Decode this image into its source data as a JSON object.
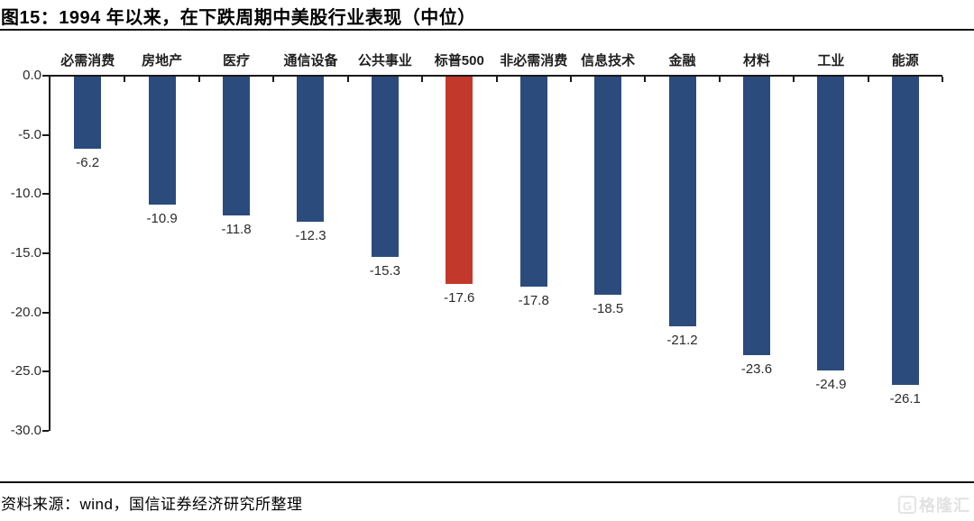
{
  "header": {
    "title": "图15：1994 年以来，在下跌周期中美股行业表现（中位）"
  },
  "footer": {
    "source": "资料来源：wind，国信证券经济研究所整理",
    "logo_icon": "G",
    "logo_text": "格隆汇"
  },
  "chart_data": {
    "type": "bar",
    "title": "图15：1994 年以来，在下跌周期中美股行业表现（中位）",
    "categories": [
      "必需消费",
      "房地产",
      "医疗",
      "通信设备",
      "公共事业",
      "标普500",
      "非必需消费",
      "信息技术",
      "金融",
      "材料",
      "工业",
      "能源"
    ],
    "values": [
      -6.2,
      -10.9,
      -11.8,
      -12.3,
      -15.3,
      -17.6,
      -17.8,
      -18.5,
      -21.2,
      -23.6,
      -24.9,
      -26.1
    ],
    "value_labels": [
      "-6.2",
      "-10.9",
      "-11.8",
      "-12.3",
      "-15.3",
      "-17.6",
      "-17.8",
      "-18.5",
      "-21.2",
      "-23.6",
      "-24.9",
      "-26.1"
    ],
    "highlight_index": 5,
    "highlight_category": "标普500",
    "bar_color": "#2B4B7D",
    "highlight_color": "#C2392B",
    "ylim": [
      -30,
      0
    ],
    "ytick_values": [
      0,
      -5,
      -10,
      -15,
      -20,
      -25,
      -30
    ],
    "ytick_labels": [
      "0.0",
      "-5.0",
      "-10.0",
      "-15.0",
      "-20.0",
      "-25.0",
      "-30.0"
    ],
    "grid": false,
    "legend": "none",
    "xlabel": "",
    "ylabel": ""
  }
}
